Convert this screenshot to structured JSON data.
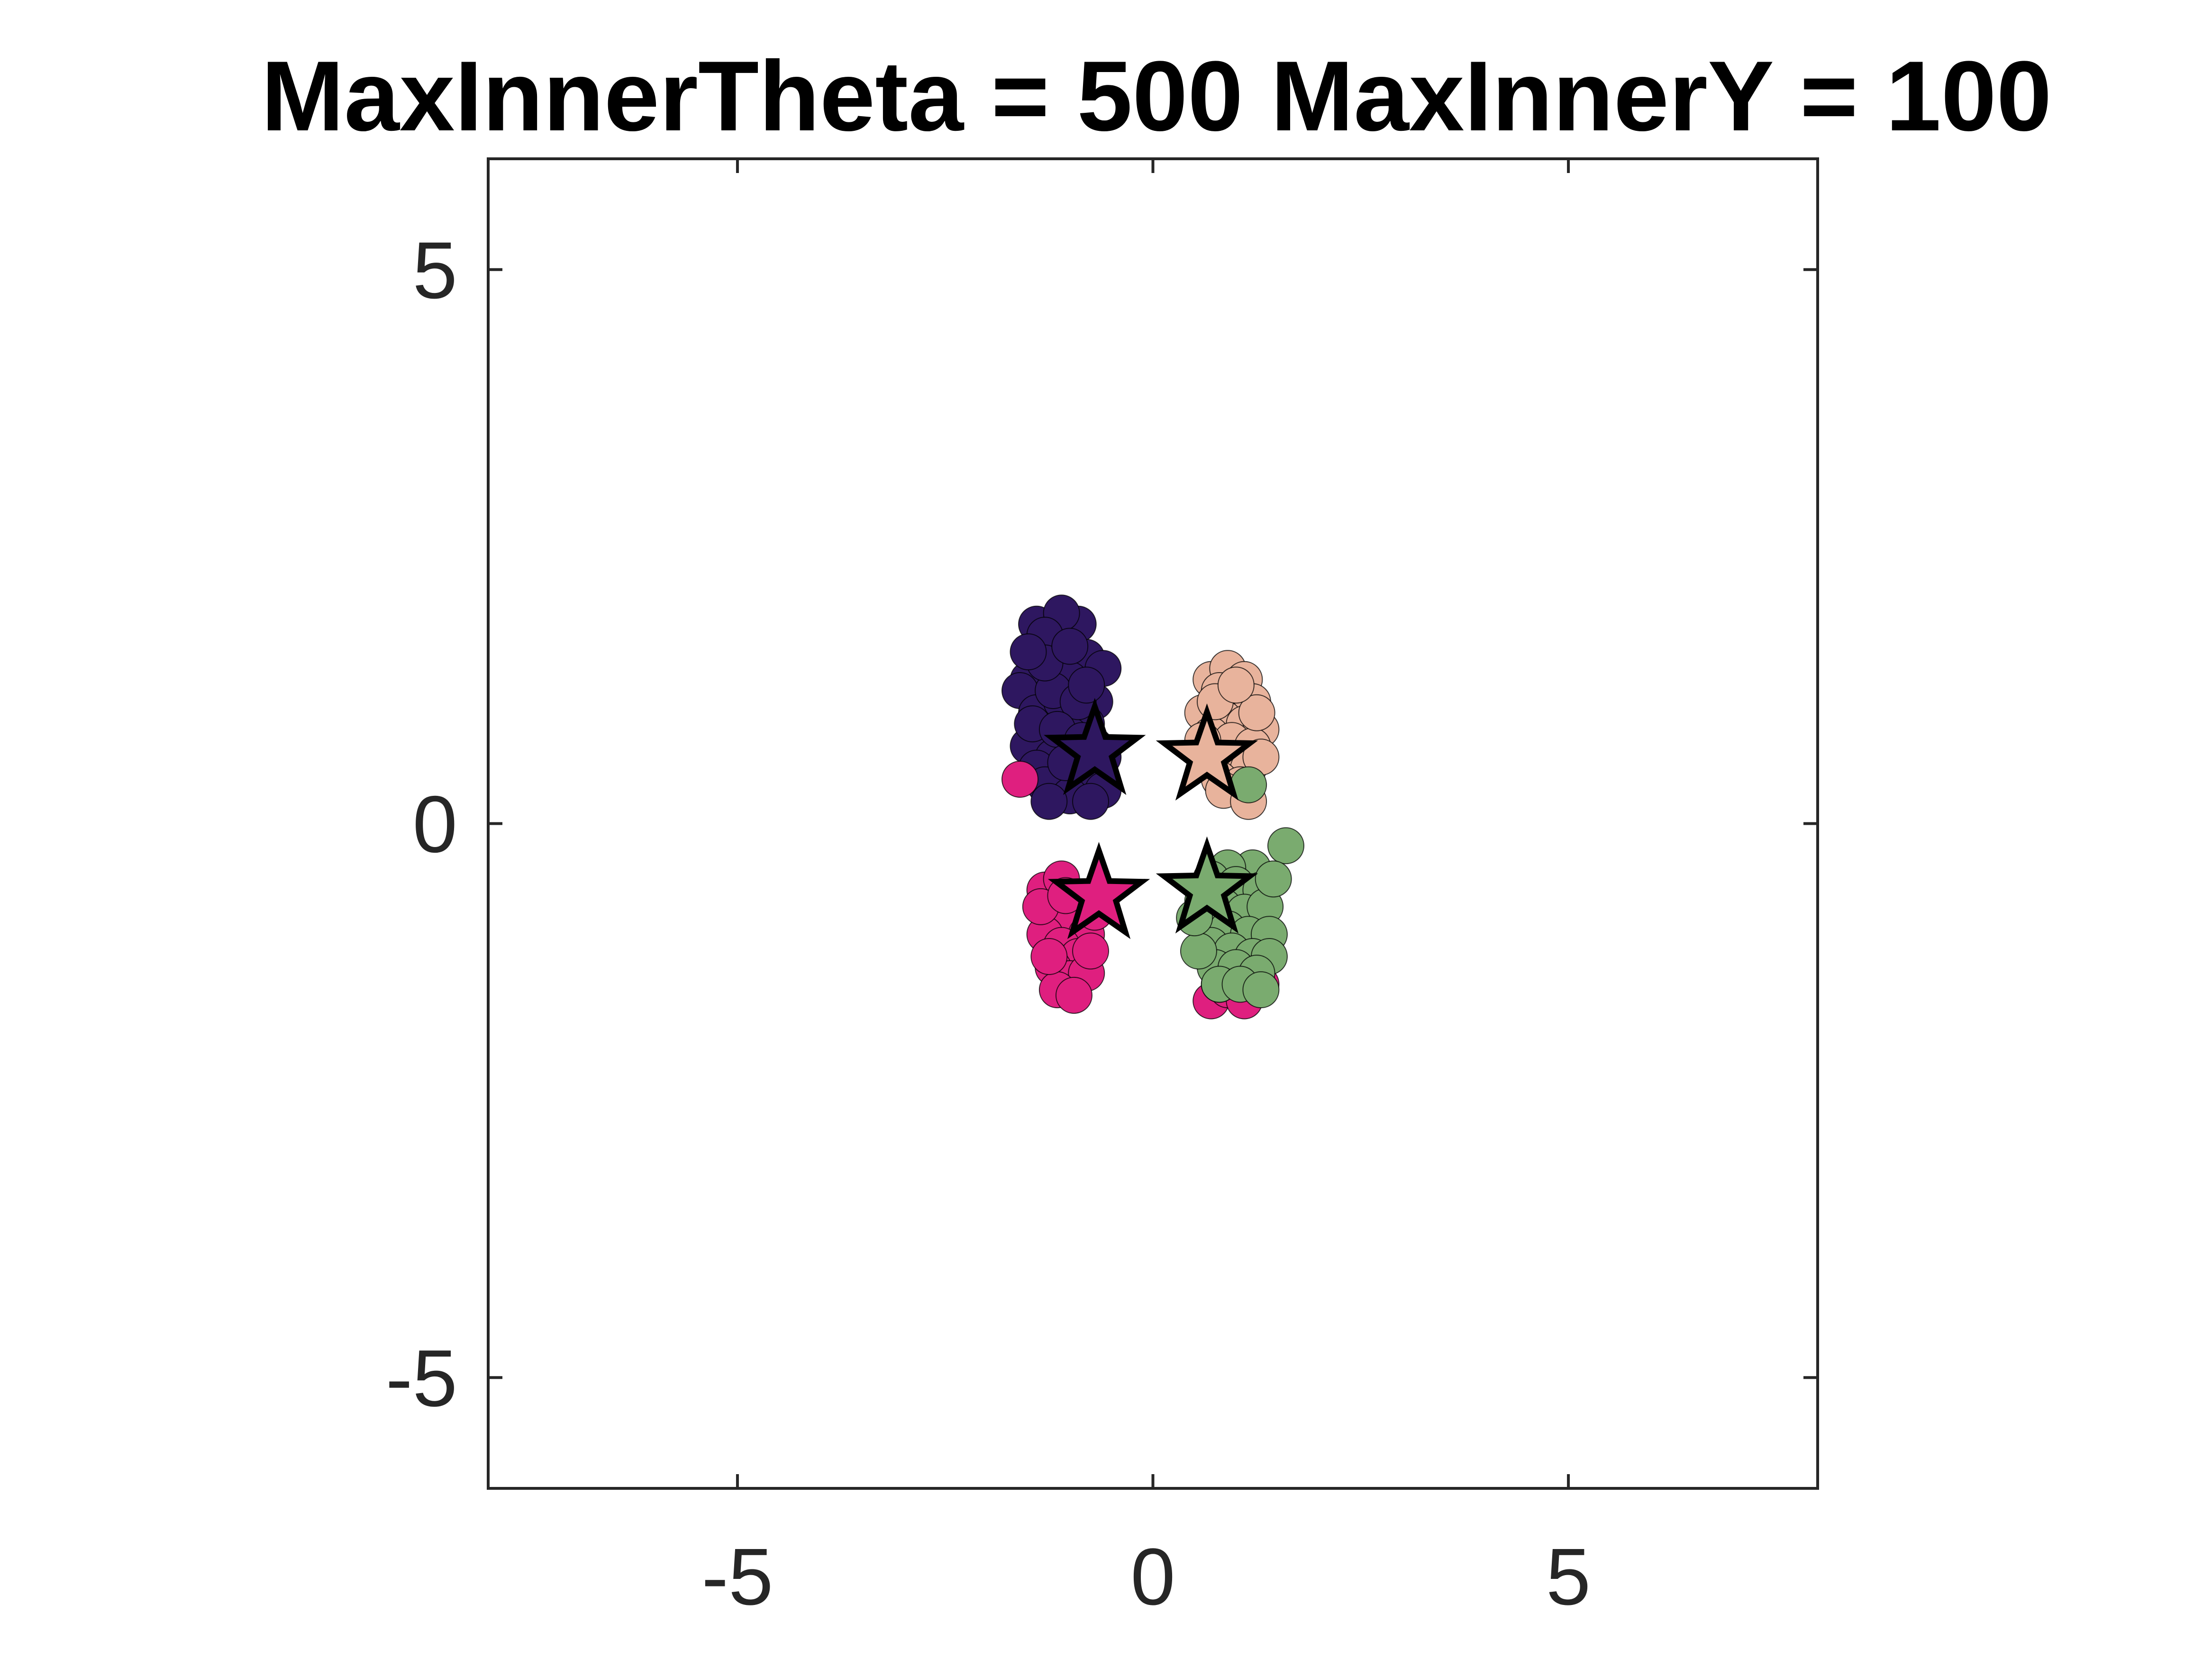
{
  "chart_data": {
    "type": "scatter",
    "title": "MaxInnerTheta = 500 MaxInnerY = 100",
    "xlabel": "",
    "ylabel": "",
    "xlim": [
      -8,
      8
    ],
    "ylim": [
      -6,
      6
    ],
    "x_ticks": [
      -5,
      0,
      5
    ],
    "y_ticks": [
      -5,
      0,
      5
    ],
    "x_tick_labels": [
      "-5",
      "0",
      "5"
    ],
    "y_tick_labels": [
      "-5",
      "0",
      "5"
    ],
    "grid": false,
    "legend": "none",
    "series": [
      {
        "color": "#2e1760",
        "points": [
          [
            -1.4,
            1.8
          ],
          [
            -1.2,
            1.6
          ],
          [
            -0.9,
            1.8
          ],
          [
            -1.1,
            1.9
          ],
          [
            -1.3,
            1.7
          ],
          [
            -0.8,
            1.5
          ],
          [
            -1.5,
            1.3
          ],
          [
            -1.6,
            1.2
          ],
          [
            -1.2,
            1.4
          ],
          [
            -1.0,
            1.3
          ],
          [
            -0.6,
            1.4
          ],
          [
            -0.7,
            1.1
          ],
          [
            -1.4,
            1.0
          ],
          [
            -1.1,
            1.1
          ],
          [
            -0.8,
            0.9
          ],
          [
            -1.3,
            0.8
          ],
          [
            -1.5,
            0.7
          ],
          [
            -1.0,
            0.8
          ],
          [
            -0.7,
            0.7
          ],
          [
            -1.2,
            0.6
          ],
          [
            -1.4,
            0.5
          ],
          [
            -0.9,
            0.5
          ],
          [
            -0.6,
            0.6
          ],
          [
            -1.1,
            0.4
          ],
          [
            -1.3,
            0.35
          ],
          [
            -0.7,
            0.4
          ],
          [
            -1.0,
            0.25
          ],
          [
            -0.6,
            0.3
          ],
          [
            -1.2,
            1.2
          ],
          [
            -0.9,
            1.1
          ],
          [
            -1.3,
            1.45
          ],
          [
            -1.0,
            1.6
          ],
          [
            -0.8,
            1.25
          ],
          [
            -1.45,
            0.9
          ],
          [
            -1.15,
            0.85
          ],
          [
            -0.85,
            0.75
          ],
          [
            -1.25,
            0.2
          ],
          [
            -0.75,
            0.2
          ],
          [
            -1.05,
            0.55
          ],
          [
            -1.5,
            1.55
          ]
        ]
      },
      {
        "color": "#e8b39c",
        "points": [
          [
            0.7,
            1.3
          ],
          [
            0.9,
            1.4
          ],
          [
            1.1,
            1.3
          ],
          [
            0.8,
            1.2
          ],
          [
            1.0,
            1.15
          ],
          [
            1.2,
            1.1
          ],
          [
            0.6,
            1.0
          ],
          [
            0.85,
            0.95
          ],
          [
            1.1,
            0.9
          ],
          [
            1.3,
            0.85
          ],
          [
            0.7,
            0.8
          ],
          [
            0.95,
            0.75
          ],
          [
            1.2,
            0.7
          ],
          [
            0.65,
            0.6
          ],
          [
            0.9,
            0.55
          ],
          [
            1.15,
            0.5
          ],
          [
            0.8,
            0.4
          ],
          [
            1.05,
            0.35
          ],
          [
            1.25,
            1.0
          ],
          [
            0.75,
            1.1
          ],
          [
            1.0,
            1.25
          ],
          [
            0.6,
            0.75
          ],
          [
            1.3,
            0.6
          ],
          [
            0.85,
            0.3
          ],
          [
            1.15,
            0.2
          ]
        ]
      },
      {
        "color": "#df1f7f",
        "points": [
          [
            -1.6,
            0.4
          ],
          [
            -1.3,
            -0.6
          ],
          [
            -1.1,
            -0.5
          ],
          [
            -0.9,
            -0.7
          ],
          [
            -1.2,
            -0.8
          ],
          [
            -1.0,
            -0.9
          ],
          [
            -0.8,
            -1.0
          ],
          [
            -1.3,
            -1.0
          ],
          [
            -1.1,
            -1.1
          ],
          [
            -0.9,
            -1.2
          ],
          [
            -1.2,
            -1.3
          ],
          [
            -1.0,
            -1.4
          ],
          [
            -0.8,
            -1.35
          ],
          [
            -1.15,
            -1.5
          ],
          [
            -0.95,
            -1.55
          ],
          [
            -0.7,
            -0.8
          ],
          [
            -1.35,
            -0.75
          ],
          [
            -1.05,
            -0.65
          ],
          [
            -0.75,
            -1.15
          ],
          [
            -1.25,
            -1.2
          ],
          [
            0.7,
            -1.6
          ],
          [
            0.9,
            -1.5
          ],
          [
            1.1,
            -1.6
          ],
          [
            1.3,
            -1.45
          ],
          [
            0.8,
            -1.45
          ]
        ]
      },
      {
        "color": "#7aab6f",
        "points": [
          [
            1.6,
            -0.2
          ],
          [
            1.2,
            -0.4
          ],
          [
            0.9,
            -0.4
          ],
          [
            0.7,
            -0.5
          ],
          [
            1.0,
            -0.55
          ],
          [
            1.3,
            -0.6
          ],
          [
            0.6,
            -0.7
          ],
          [
            0.85,
            -0.75
          ],
          [
            1.1,
            -0.8
          ],
          [
            1.35,
            -0.75
          ],
          [
            0.65,
            -0.9
          ],
          [
            0.9,
            -0.95
          ],
          [
            1.15,
            -1.0
          ],
          [
            1.4,
            -1.0
          ],
          [
            0.7,
            -1.1
          ],
          [
            0.95,
            -1.15
          ],
          [
            1.2,
            -1.2
          ],
          [
            1.4,
            -1.2
          ],
          [
            0.75,
            -1.3
          ],
          [
            1.0,
            -1.3
          ],
          [
            1.25,
            -1.35
          ],
          [
            0.8,
            -1.45
          ],
          [
            1.05,
            -1.45
          ],
          [
            1.3,
            -1.5
          ],
          [
            0.55,
            -1.15
          ],
          [
            1.15,
            0.35
          ],
          [
            0.5,
            -0.85
          ],
          [
            1.45,
            -0.5
          ]
        ]
      }
    ],
    "markers": [
      {
        "shape": "star",
        "x": -0.7,
        "y": 0.65,
        "color": "#2e1760"
      },
      {
        "shape": "star",
        "x": 0.65,
        "y": 0.6,
        "color": "#e8b39c"
      },
      {
        "shape": "star",
        "x": -0.65,
        "y": -0.65,
        "color": "#df1f7f"
      },
      {
        "shape": "star",
        "x": 0.65,
        "y": -0.6,
        "color": "#7aab6f"
      }
    ]
  }
}
